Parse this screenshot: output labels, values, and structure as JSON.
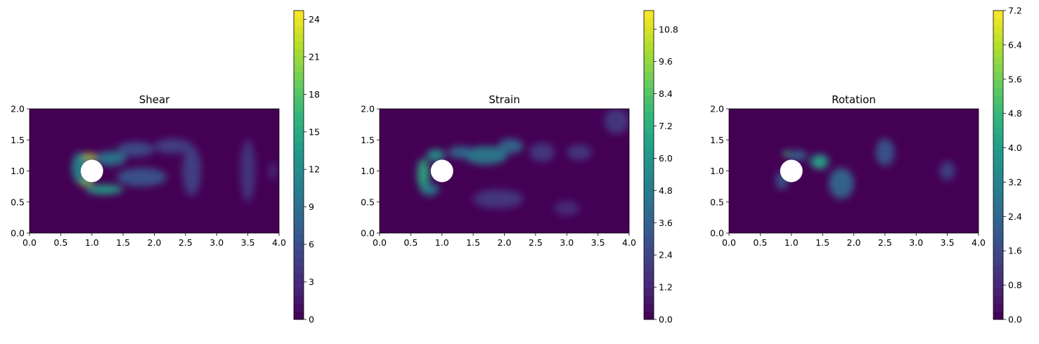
{
  "chart_data": [
    {
      "type": "heatmap",
      "title": "Shear",
      "xlabel": "",
      "ylabel": "",
      "xlim": [
        0,
        4
      ],
      "ylim": [
        0,
        2
      ],
      "xticks": [
        "0.0",
        "0.5",
        "1.0",
        "1.5",
        "2.0",
        "2.5",
        "3.0",
        "3.5",
        "4.0"
      ],
      "yticks": [
        "0.0",
        "0.5",
        "1.0",
        "1.5",
        "2.0"
      ],
      "obstacle": {
        "shape": "circle",
        "cx": 1.0,
        "cy": 1.0,
        "r": 0.18
      },
      "colorbar": {
        "colormap": "viridis",
        "min": 0,
        "max": 24.7,
        "ticks": [
          "0",
          "3",
          "6",
          "9",
          "12",
          "15",
          "18",
          "21",
          "24"
        ]
      },
      "features": [
        {
          "x": 0.95,
          "y": 1.22,
          "rx": 0.12,
          "ry": 0.06,
          "v": 22
        },
        {
          "x": 0.9,
          "y": 0.82,
          "rx": 0.12,
          "ry": 0.06,
          "v": 20
        },
        {
          "x": 0.8,
          "y": 1.05,
          "rx": 0.12,
          "ry": 0.25,
          "v": 12
        },
        {
          "x": 1.2,
          "y": 0.7,
          "rx": 0.3,
          "ry": 0.08,
          "v": 14
        },
        {
          "x": 1.3,
          "y": 1.2,
          "rx": 0.25,
          "ry": 0.12,
          "v": 10
        },
        {
          "x": 1.8,
          "y": 0.9,
          "rx": 0.4,
          "ry": 0.15,
          "v": 7
        },
        {
          "x": 1.7,
          "y": 1.35,
          "rx": 0.3,
          "ry": 0.12,
          "v": 6
        },
        {
          "x": 2.3,
          "y": 1.4,
          "rx": 0.3,
          "ry": 0.12,
          "v": 5
        },
        {
          "x": 2.6,
          "y": 1.0,
          "rx": 0.15,
          "ry": 0.4,
          "v": 5
        },
        {
          "x": 3.5,
          "y": 1.0,
          "rx": 0.12,
          "ry": 0.5,
          "v": 4
        },
        {
          "x": 3.9,
          "y": 1.0,
          "rx": 0.06,
          "ry": 0.15,
          "v": 3
        }
      ]
    },
    {
      "type": "heatmap",
      "title": "Strain",
      "xlabel": "",
      "ylabel": "",
      "xlim": [
        0,
        4
      ],
      "ylim": [
        0,
        2
      ],
      "xticks": [
        "0.0",
        "0.5",
        "1.0",
        "1.5",
        "2.0",
        "2.5",
        "3.0",
        "3.5",
        "4.0"
      ],
      "yticks": [
        "0.0",
        "0.5",
        "1.0",
        "1.5",
        "2.0"
      ],
      "obstacle": {
        "shape": "circle",
        "cx": 1.0,
        "cy": 1.0,
        "r": 0.18
      },
      "colorbar": {
        "colormap": "viridis",
        "min": 0,
        "max": 11.5,
        "ticks": [
          "0.0",
          "1.2",
          "2.4",
          "3.6",
          "4.8",
          "6.0",
          "7.2",
          "8.4",
          "9.6",
          "10.8"
        ]
      },
      "features": [
        {
          "x": 0.7,
          "y": 0.95,
          "rx": 0.1,
          "ry": 0.25,
          "v": 7
        },
        {
          "x": 0.9,
          "y": 1.25,
          "rx": 0.15,
          "ry": 0.1,
          "v": 6
        },
        {
          "x": 0.8,
          "y": 0.7,
          "rx": 0.15,
          "ry": 0.1,
          "v": 5
        },
        {
          "x": 1.7,
          "y": 1.25,
          "rx": 0.35,
          "ry": 0.15,
          "v": 5
        },
        {
          "x": 1.3,
          "y": 1.3,
          "rx": 0.2,
          "ry": 0.1,
          "v": 4
        },
        {
          "x": 2.1,
          "y": 1.4,
          "rx": 0.2,
          "ry": 0.12,
          "v": 4
        },
        {
          "x": 1.9,
          "y": 0.55,
          "rx": 0.4,
          "ry": 0.15,
          "v": 2
        },
        {
          "x": 2.6,
          "y": 1.3,
          "rx": 0.2,
          "ry": 0.15,
          "v": 2
        },
        {
          "x": 3.2,
          "y": 1.3,
          "rx": 0.2,
          "ry": 0.12,
          "v": 2
        },
        {
          "x": 3.8,
          "y": 1.8,
          "rx": 0.2,
          "ry": 0.2,
          "v": 2
        },
        {
          "x": 3.0,
          "y": 0.4,
          "rx": 0.2,
          "ry": 0.12,
          "v": 1.5
        }
      ]
    },
    {
      "type": "heatmap",
      "title": "Rotation",
      "xlabel": "",
      "ylabel": "",
      "xlim": [
        0,
        4
      ],
      "ylim": [
        0,
        2
      ],
      "xticks": [
        "0.0",
        "0.5",
        "1.0",
        "1.5",
        "2.0",
        "2.5",
        "3.0",
        "3.5",
        "4.0"
      ],
      "yticks": [
        "0.0",
        "0.5",
        "1.0",
        "1.5",
        "2.0"
      ],
      "obstacle": {
        "shape": "circle",
        "cx": 1.0,
        "cy": 1.0,
        "r": 0.18
      },
      "colorbar": {
        "colormap": "viridis",
        "min": 0,
        "max": 7.2,
        "ticks": [
          "0.0",
          "0.8",
          "1.6",
          "2.4",
          "3.2",
          "4.0",
          "4.8",
          "5.6",
          "6.4",
          "7.2"
        ]
      },
      "features": [
        {
          "x": 1.45,
          "y": 1.12,
          "rx": 0.07,
          "ry": 0.07,
          "v": 7.0
        },
        {
          "x": 1.45,
          "y": 1.15,
          "rx": 0.15,
          "ry": 0.12,
          "v": 4
        },
        {
          "x": 0.92,
          "y": 1.28,
          "rx": 0.05,
          "ry": 0.05,
          "v": 5
        },
        {
          "x": 1.1,
          "y": 1.25,
          "rx": 0.15,
          "ry": 0.08,
          "v": 2.5
        },
        {
          "x": 0.85,
          "y": 0.85,
          "rx": 0.1,
          "ry": 0.15,
          "v": 2
        },
        {
          "x": 1.8,
          "y": 0.8,
          "rx": 0.2,
          "ry": 0.25,
          "v": 2.5
        },
        {
          "x": 2.5,
          "y": 1.3,
          "rx": 0.15,
          "ry": 0.22,
          "v": 2
        },
        {
          "x": 3.5,
          "y": 1.0,
          "rx": 0.12,
          "ry": 0.15,
          "v": 1.5
        }
      ]
    }
  ]
}
